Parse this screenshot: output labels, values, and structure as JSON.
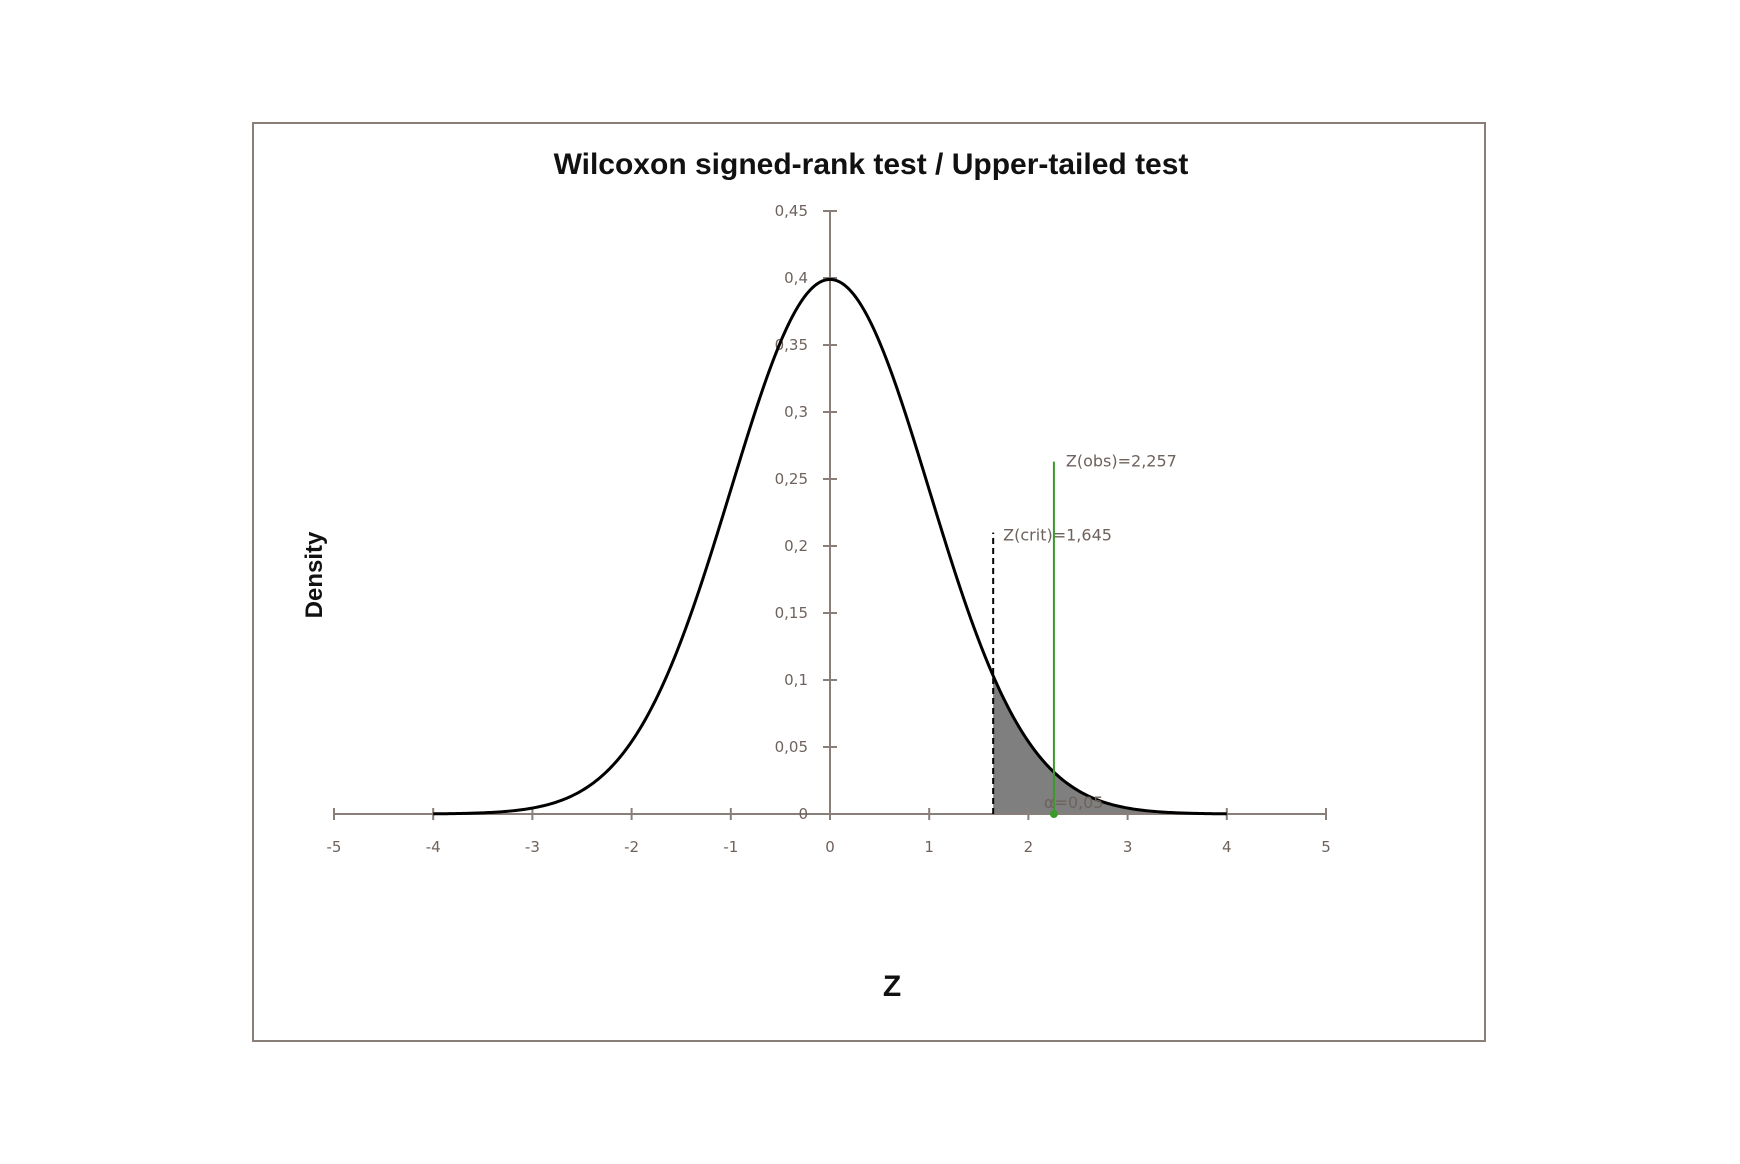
{
  "chart_data": {
    "type": "line",
    "title": "Wilcoxon signed-rank test / Upper-tailed test",
    "xlabel": "Z",
    "ylabel": "Density",
    "xlim": [
      -5,
      5
    ],
    "ylim": [
      0,
      0.45
    ],
    "x_ticks": [
      "-5",
      "-4",
      "-3",
      "-2",
      "-1",
      "0",
      "1",
      "2",
      "3",
      "4",
      "5"
    ],
    "x_tick_values": [
      -5,
      -4,
      -3,
      -2,
      -1,
      0,
      1,
      2,
      3,
      4,
      5
    ],
    "y_ticks": [
      "0",
      "0,05",
      "0,1",
      "0,15",
      "0,2",
      "0,25",
      "0,3",
      "0,35",
      "0,4",
      "0,45"
    ],
    "y_tick_values": [
      0,
      0.05,
      0.1,
      0.15,
      0.2,
      0.25,
      0.3,
      0.35,
      0.4,
      0.45
    ],
    "series": [
      {
        "distribution": "standard normal",
        "x_range": [
          -4,
          4
        ],
        "color": "#000000"
      }
    ],
    "critical": {
      "z": 1.645,
      "label": "Z(crit)=1,645",
      "line_top": 0.21
    },
    "observed": {
      "z": 2.257,
      "label": "Z(obs)=2,257",
      "line_top": 0.263,
      "color": "#3a9a2a"
    },
    "alpha": {
      "value": 0.05,
      "label": "α=0,05"
    },
    "shade_color": "#7f7f7f",
    "grid": false
  }
}
